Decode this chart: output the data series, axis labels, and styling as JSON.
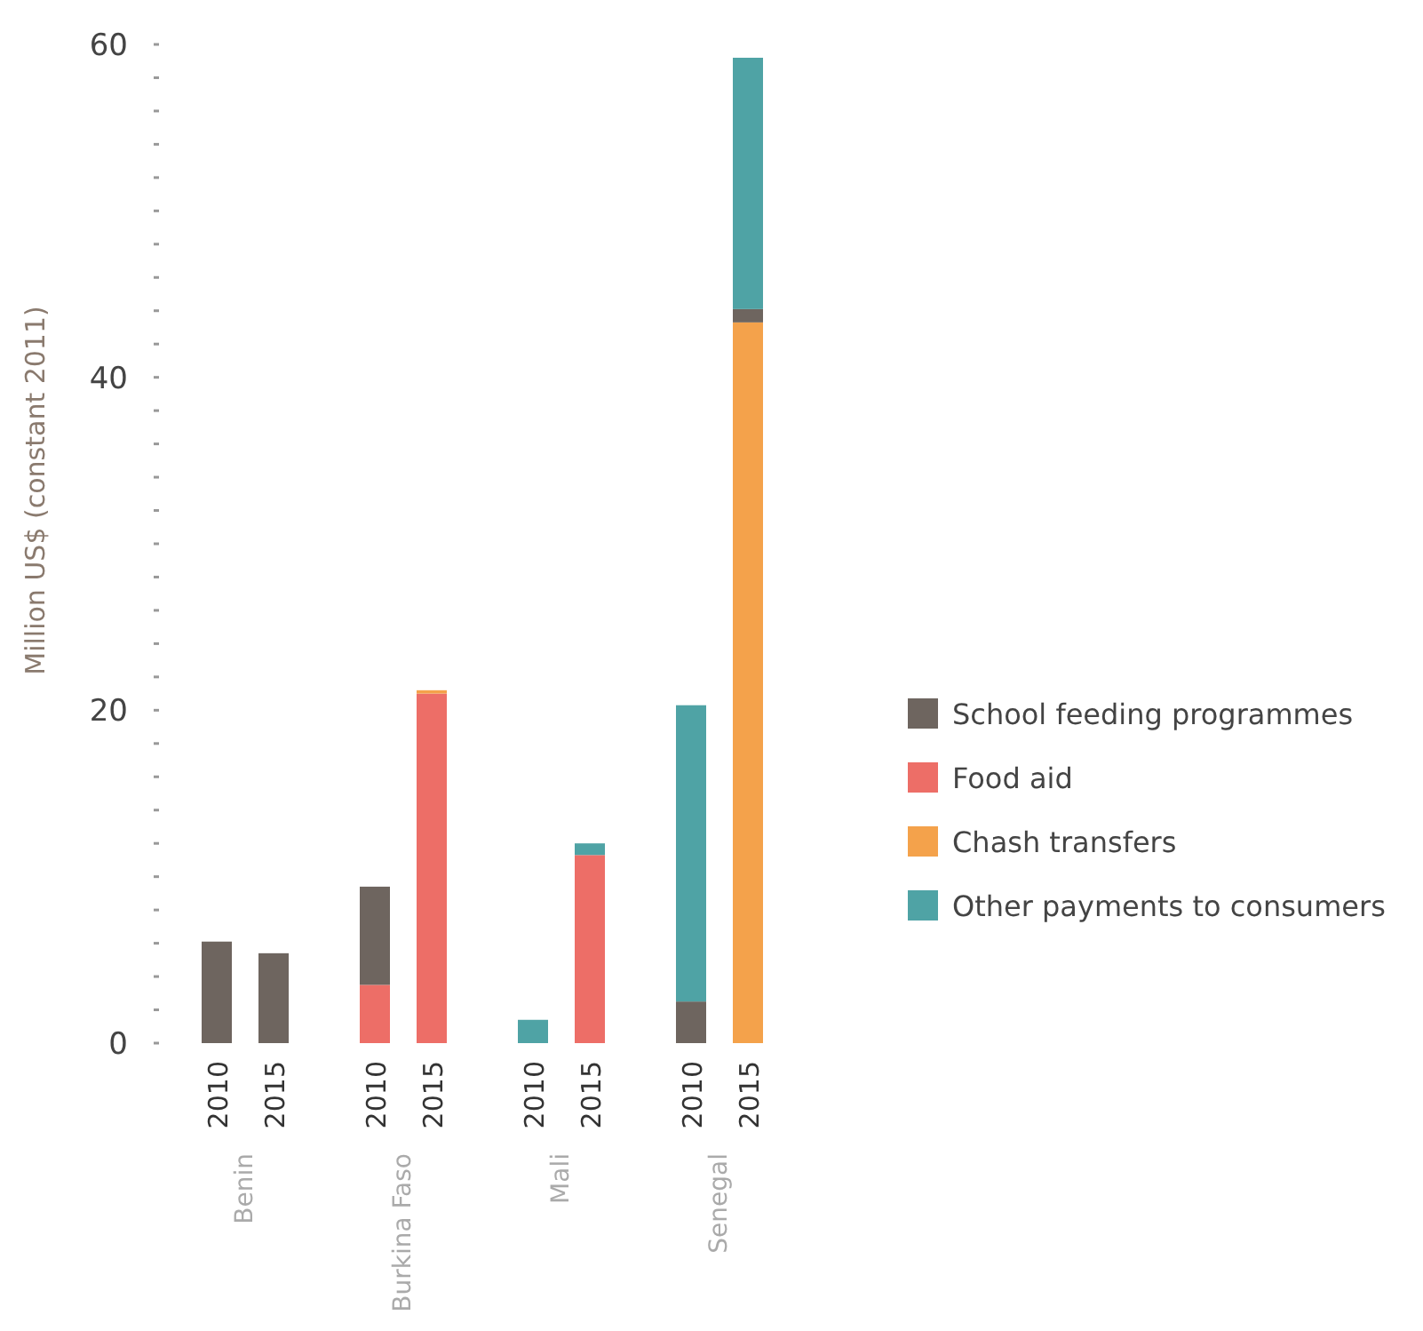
{
  "chart_data": {
    "type": "bar",
    "stacked": true,
    "ylabel": "Million US$ (constant 2011)",
    "categories": [
      "2010",
      "2015",
      "2010",
      "2015",
      "2010",
      "2015",
      "2010",
      "2015"
    ],
    "series": [
      {
        "name": "Food aid",
        "color": "#ed6e67",
        "values": [
          null,
          null,
          3.5,
          21.0,
          null,
          11.3,
          null,
          null
        ]
      },
      {
        "name": "Chash transfers",
        "color": "#f4a24b",
        "values": [
          null,
          null,
          null,
          0.2,
          null,
          null,
          null,
          43.3
        ]
      },
      {
        "name": "School feeding programmes",
        "color": "#6e655f",
        "values": [
          6.1,
          5.4,
          5.9,
          null,
          null,
          null,
          2.5,
          0.8
        ]
      },
      {
        "name": "Other payments to consumers",
        "color": "#4fa3a5",
        "values": [
          null,
          null,
          null,
          null,
          1.4,
          0.7,
          17.8,
          15.1
        ]
      }
    ],
    "annotations": [
      "Benin",
      "Burkina Faso",
      "Mali",
      "Senegal"
    ],
    "ylim": [
      0,
      60
    ],
    "yticks": [
      0,
      {
        "value": 2,
        "label": null
      },
      {
        "value": 4,
        "label": null
      },
      {
        "value": 6,
        "label": null
      },
      {
        "value": 8,
        "label": null
      },
      {
        "value": 10,
        "label": null
      },
      {
        "value": 12,
        "label": null
      },
      {
        "value": 14,
        "label": null
      },
      {
        "value": 16,
        "label": null
      },
      {
        "value": 18,
        "label": null
      },
      20,
      {
        "value": 22,
        "label": null
      },
      {
        "value": 24,
        "label": null
      },
      {
        "value": 26,
        "label": null
      },
      {
        "value": 28,
        "label": null
      },
      {
        "value": 30,
        "label": null
      },
      {
        "value": 32,
        "label": null
      },
      {
        "value": 34,
        "label": null
      },
      {
        "value": 36,
        "label": null
      },
      {
        "value": 38,
        "label": null
      },
      40,
      {
        "value": 42,
        "label": null
      },
      {
        "value": 44,
        "label": null
      },
      {
        "value": 46,
        "label": null
      },
      {
        "value": 48,
        "label": null
      },
      {
        "value": 50,
        "label": null
      },
      {
        "value": 52,
        "label": null
      },
      {
        "value": 54,
        "label": null
      },
      {
        "value": 56,
        "label": null
      },
      {
        "value": 58,
        "label": null
      },
      60
    ],
    "grid": false,
    "legend": "right"
  }
}
